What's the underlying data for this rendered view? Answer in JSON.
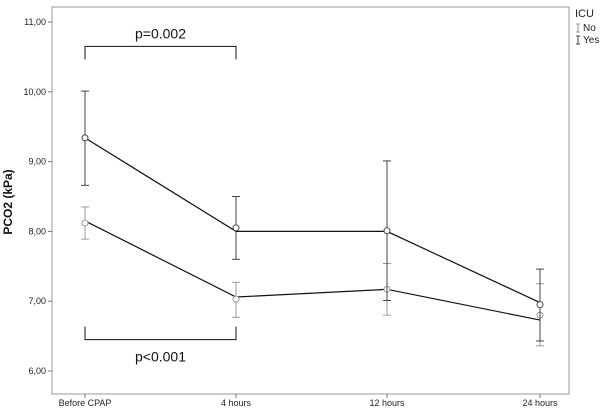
{
  "chart_data": {
    "type": "line",
    "title": "",
    "xlabel": "",
    "ylabel": "PCO2 (kPa)",
    "categories": [
      "Before CPAP",
      "4 hours",
      "12 hours",
      "24 hours"
    ],
    "ylim": [
      5.8,
      11.2
    ],
    "yticks": [
      "6,00",
      "7,00",
      "8,00",
      "9,00",
      "10,00",
      "11,00"
    ],
    "ytick_values": [
      6,
      7,
      8,
      9,
      10,
      11
    ],
    "grid": false,
    "legend": {
      "title": "ICU",
      "position": "top-right",
      "entries": [
        "No",
        "Yes"
      ]
    },
    "series": [
      {
        "name": "No",
        "color": "#999999",
        "line_values": [
          8.15,
          7.06,
          7.17,
          6.73
        ],
        "means": [
          8.12,
          7.03,
          7.17,
          6.8
        ],
        "error_low": [
          7.89,
          6.77,
          6.8,
          6.36
        ],
        "error_high": [
          8.35,
          7.27,
          7.54,
          7.25
        ]
      },
      {
        "name": "Yes",
        "color": "#444444",
        "line_values": [
          9.34,
          8.0,
          8.0,
          6.98
        ],
        "means": [
          9.34,
          8.05,
          8.01,
          6.95
        ],
        "error_low": [
          8.66,
          7.6,
          7.01,
          6.43
        ],
        "error_high": [
          10.01,
          8.5,
          9.01,
          7.46
        ]
      }
    ],
    "annotations": [
      {
        "text": "p=0.002",
        "from": 0,
        "to": 1,
        "y": 10.65,
        "orientation": "down"
      },
      {
        "text": "p<0.001",
        "from": 0,
        "to": 1,
        "y": 6.45,
        "orientation": "up"
      }
    ]
  }
}
